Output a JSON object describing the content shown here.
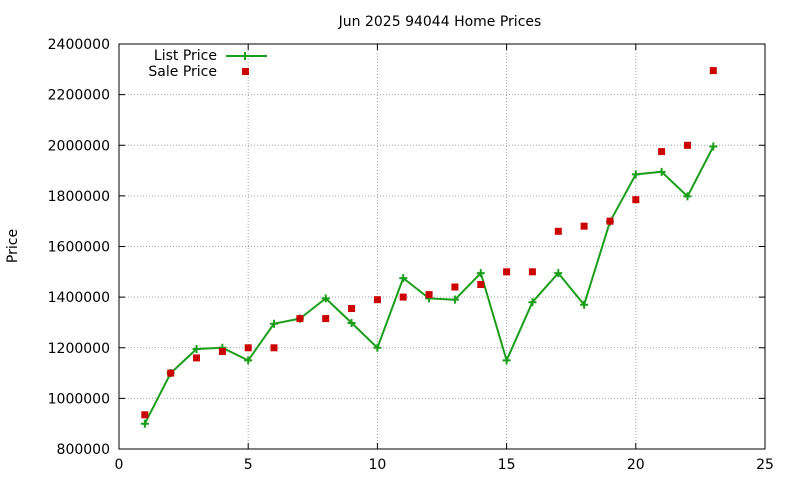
{
  "chart_data": {
    "type": "line",
    "title": "Jun 2025 94044 Home Prices",
    "xlabel": "",
    "ylabel": "Price",
    "xlim": [
      0,
      25
    ],
    "ylim": [
      800000,
      2400000
    ],
    "xticks": [
      0,
      5,
      10,
      15,
      20,
      25
    ],
    "yticks": [
      800000,
      1000000,
      1200000,
      1400000,
      1600000,
      1800000,
      2000000,
      2200000,
      2400000
    ],
    "grid": true,
    "legend_position": "top-left",
    "series": [
      {
        "name": "List Price",
        "style": "line-points",
        "color": "#1a9e1a",
        "x": [
          1,
          2,
          3,
          4,
          5,
          6,
          7,
          8,
          9,
          10,
          11,
          12,
          13,
          14,
          15,
          16,
          17,
          18,
          19,
          20,
          21,
          22,
          23
        ],
        "y": [
          900000,
          1100000,
          1195000,
          1200000,
          1150000,
          1295000,
          1315000,
          1395000,
          1298000,
          1200000,
          1475000,
          1395000,
          1390000,
          1495000,
          1150000,
          1380000,
          1495000,
          1370000,
          1698000,
          1885000,
          1895000,
          1798000,
          1995000
        ]
      },
      {
        "name": "Sale Price",
        "style": "points",
        "color": "#cc0000",
        "x": [
          1,
          2,
          3,
          4,
          5,
          6,
          7,
          8,
          9,
          10,
          11,
          12,
          13,
          14,
          15,
          16,
          17,
          18,
          19,
          20,
          21,
          22,
          23
        ],
        "y": [
          935000,
          1100000,
          1160000,
          1185000,
          1200000,
          1200000,
          1315000,
          1315000,
          1355000,
          1390000,
          1400000,
          1410000,
          1440000,
          1450000,
          1500000,
          1500000,
          1660000,
          1680000,
          1700000,
          1785000,
          1975000,
          2000000,
          2295000
        ]
      }
    ]
  }
}
